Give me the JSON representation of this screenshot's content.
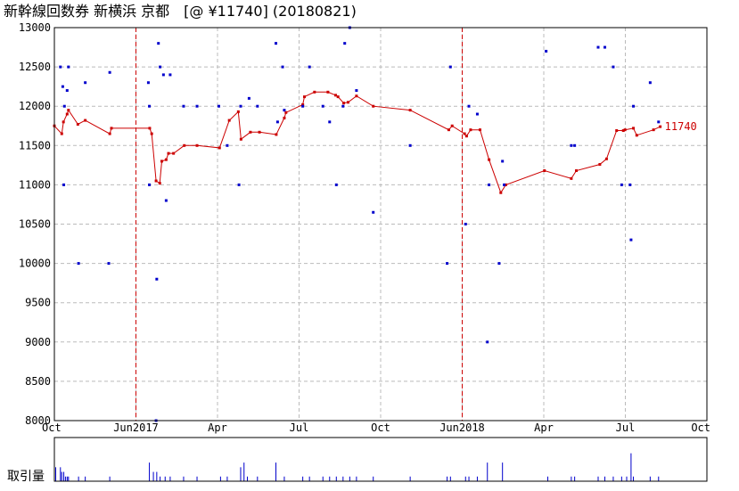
{
  "chart_data": {
    "type": "line",
    "title": "新幹線回数券 新横浜 京都　[@ ¥11740] (20180821)",
    "current_value_label": "11740",
    "volume_label": "取引量",
    "ylim": [
      8000,
      13000
    ],
    "y_ticks": [
      13000,
      12500,
      12000,
      11500,
      11000,
      10500,
      10000,
      9500,
      9000,
      8500,
      8000
    ],
    "x_ticks": [
      {
        "label": "Oct",
        "day": 0
      },
      {
        "label": "Jun2017",
        "day": 243
      },
      {
        "label": "Apr",
        "day": 486
      },
      {
        "label": "Jul",
        "day": 729
      },
      {
        "label": "Oct",
        "day": 972
      },
      {
        "label": "Jun2018",
        "day": 1215
      },
      {
        "label": "Apr",
        "day": 1458
      },
      {
        "label": "Jul",
        "day": 1701
      },
      {
        "label": "Oct",
        "day": 1944
      }
    ],
    "vertical_markers": [
      243,
      1215
    ],
    "colors": {
      "line": "#cc0000",
      "scatter": "#0000cc",
      "volume": "#0000cc",
      "grid": "#bbbbbb",
      "marker": "#cc0000"
    },
    "series": [
      {
        "type": "line",
        "points": [
          [
            0,
            11750
          ],
          [
            22,
            11650
          ],
          [
            27,
            11800
          ],
          [
            38,
            11900
          ],
          [
            42,
            11950
          ],
          [
            70,
            11770
          ],
          [
            92,
            11820
          ],
          [
            165,
            11650
          ],
          [
            170,
            11720
          ],
          [
            284,
            11720
          ],
          [
            290,
            11650
          ],
          [
            303,
            11050
          ],
          [
            314,
            11020
          ],
          [
            320,
            11300
          ],
          [
            333,
            11320
          ],
          [
            340,
            11400
          ],
          [
            355,
            11400
          ],
          [
            387,
            11500
          ],
          [
            425,
            11500
          ],
          [
            492,
            11470
          ],
          [
            521,
            11820
          ],
          [
            548,
            11930
          ],
          [
            556,
            11580
          ],
          [
            584,
            11670
          ],
          [
            611,
            11670
          ],
          [
            661,
            11640
          ],
          [
            685,
            11850
          ],
          [
            690,
            11920
          ],
          [
            740,
            12020
          ],
          [
            745,
            12120
          ],
          [
            775,
            12180
          ],
          [
            815,
            12180
          ],
          [
            838,
            12140
          ],
          [
            845,
            12120
          ],
          [
            862,
            12040
          ],
          [
            875,
            12050
          ],
          [
            900,
            12130
          ],
          [
            950,
            12000
          ],
          [
            1060,
            11950
          ],
          [
            1175,
            11700
          ],
          [
            1185,
            11750
          ],
          [
            1222,
            11650
          ],
          [
            1228,
            11620
          ],
          [
            1240,
            11700
          ],
          [
            1268,
            11700
          ],
          [
            1295,
            11320
          ],
          [
            1330,
            10900
          ],
          [
            1345,
            11000
          ],
          [
            1460,
            11180
          ],
          [
            1540,
            11080
          ],
          [
            1555,
            11180
          ],
          [
            1625,
            11260
          ],
          [
            1645,
            11330
          ],
          [
            1675,
            11690
          ],
          [
            1695,
            11690
          ],
          [
            1700,
            11700
          ],
          [
            1725,
            11720
          ],
          [
            1735,
            11630
          ],
          [
            1785,
            11700
          ],
          [
            1805,
            11740
          ]
        ]
      },
      {
        "type": "scatter",
        "points": [
          [
            18,
            12500
          ],
          [
            25,
            12250
          ],
          [
            28,
            11000
          ],
          [
            30,
            12000
          ],
          [
            38,
            12200
          ],
          [
            42,
            12500
          ],
          [
            72,
            10000
          ],
          [
            92,
            12300
          ],
          [
            162,
            10000
          ],
          [
            165,
            12430
          ],
          [
            280,
            12300
          ],
          [
            283,
            12000
          ],
          [
            283,
            11000
          ],
          [
            303,
            8000
          ],
          [
            305,
            9800
          ],
          [
            310,
            12800
          ],
          [
            315,
            12500
          ],
          [
            325,
            12400
          ],
          [
            333,
            10800
          ],
          [
            345,
            12400
          ],
          [
            385,
            12000
          ],
          [
            425,
            12000
          ],
          [
            490,
            12000
          ],
          [
            515,
            11500
          ],
          [
            550,
            11000
          ],
          [
            555,
            12000
          ],
          [
            580,
            12100
          ],
          [
            605,
            12000
          ],
          [
            660,
            12800
          ],
          [
            665,
            11800
          ],
          [
            680,
            12500
          ],
          [
            685,
            11950
          ],
          [
            740,
            12000
          ],
          [
            760,
            12500
          ],
          [
            800,
            12000
          ],
          [
            820,
            11800
          ],
          [
            840,
            11000
          ],
          [
            860,
            12000
          ],
          [
            865,
            12800
          ],
          [
            880,
            13000
          ],
          [
            900,
            12200
          ],
          [
            950,
            10650
          ],
          [
            1060,
            11500
          ],
          [
            1170,
            10000
          ],
          [
            1180,
            12500
          ],
          [
            1225,
            10500
          ],
          [
            1235,
            12000
          ],
          [
            1260,
            11900
          ],
          [
            1290,
            9000
          ],
          [
            1295,
            11000
          ],
          [
            1325,
            10000
          ],
          [
            1335,
            11300
          ],
          [
            1340,
            11000
          ],
          [
            1465,
            12700
          ],
          [
            1540,
            11500
          ],
          [
            1550,
            11500
          ],
          [
            1620,
            12750
          ],
          [
            1640,
            12750
          ],
          [
            1665,
            12500
          ],
          [
            1690,
            11000
          ],
          [
            1715,
            11000
          ],
          [
            1718,
            10300
          ],
          [
            1725,
            12000
          ],
          [
            1775,
            12300
          ],
          [
            1800,
            11800
          ]
        ]
      }
    ],
    "volume": [
      [
        0,
        9
      ],
      [
        4,
        3
      ],
      [
        18,
        3
      ],
      [
        22,
        2
      ],
      [
        28,
        2
      ],
      [
        33,
        1
      ],
      [
        38,
        1
      ],
      [
        42,
        1
      ],
      [
        72,
        1
      ],
      [
        92,
        1
      ],
      [
        165,
        1
      ],
      [
        283,
        4
      ],
      [
        295,
        2
      ],
      [
        305,
        2
      ],
      [
        315,
        1
      ],
      [
        330,
        1
      ],
      [
        345,
        1
      ],
      [
        385,
        1
      ],
      [
        425,
        1
      ],
      [
        495,
        1
      ],
      [
        515,
        1
      ],
      [
        555,
        3
      ],
      [
        565,
        4
      ],
      [
        575,
        1
      ],
      [
        605,
        1
      ],
      [
        660,
        4
      ],
      [
        685,
        1
      ],
      [
        740,
        1
      ],
      [
        760,
        1
      ],
      [
        800,
        1
      ],
      [
        820,
        1
      ],
      [
        840,
        1
      ],
      [
        860,
        1
      ],
      [
        880,
        1
      ],
      [
        900,
        1
      ],
      [
        950,
        1
      ],
      [
        1060,
        1
      ],
      [
        1170,
        1
      ],
      [
        1180,
        1
      ],
      [
        1225,
        1
      ],
      [
        1235,
        1
      ],
      [
        1260,
        1
      ],
      [
        1290,
        4
      ],
      [
        1335,
        4
      ],
      [
        1470,
        1
      ],
      [
        1540,
        1
      ],
      [
        1550,
        1
      ],
      [
        1620,
        1
      ],
      [
        1640,
        1
      ],
      [
        1665,
        1
      ],
      [
        1690,
        1
      ],
      [
        1705,
        1
      ],
      [
        1718,
        6
      ],
      [
        1725,
        1
      ],
      [
        1775,
        1
      ],
      [
        1800,
        1
      ]
    ]
  }
}
